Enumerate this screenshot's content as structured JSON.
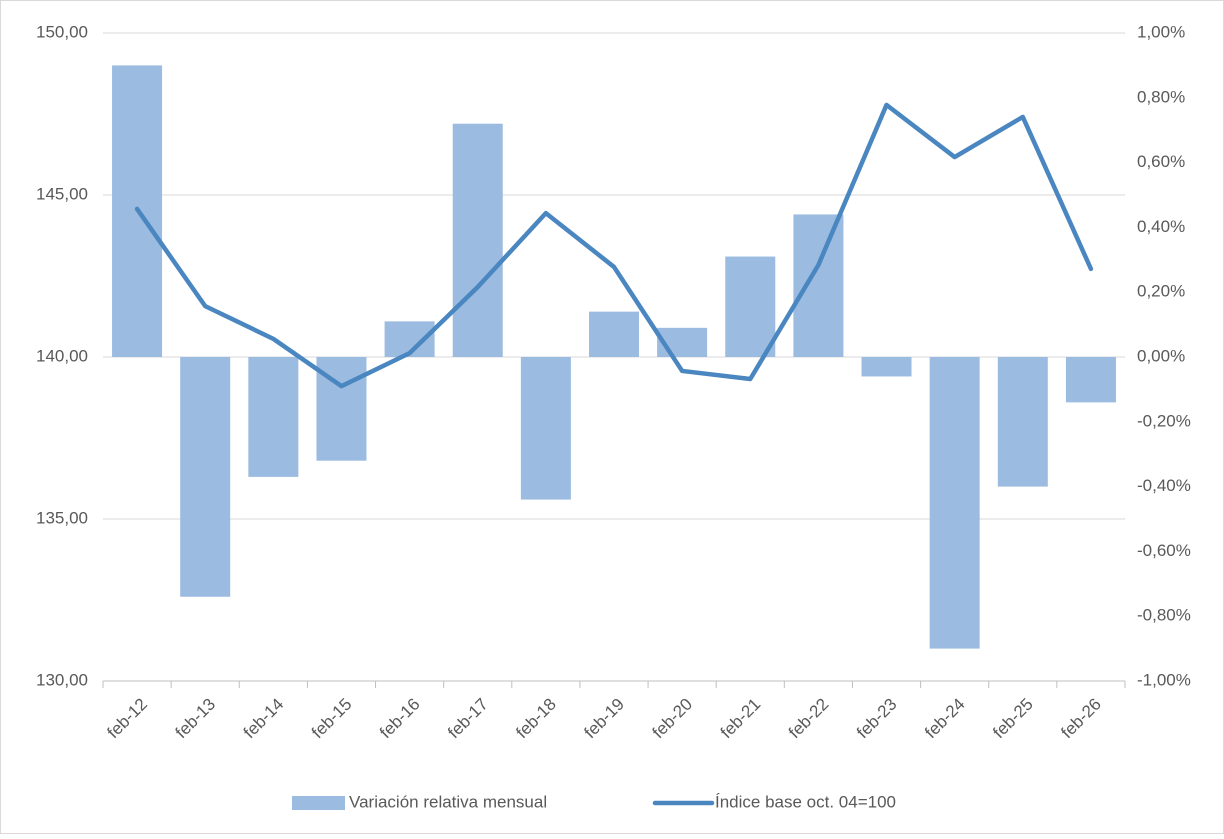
{
  "chart_data": {
    "type": "combo",
    "categories": [
      "feb-12",
      "feb-13",
      "feb-14",
      "feb-15",
      "feb-16",
      "feb-17",
      "feb-18",
      "feb-19",
      "feb-20",
      "feb-21",
      "feb-22",
      "feb-23",
      "feb-24",
      "feb-25",
      "feb-26"
    ],
    "series": [
      {
        "name": "Variación relativa mensual",
        "type": "bar",
        "axis": "y2",
        "color": "#9bbbe0",
        "values": [
          0.9,
          -0.74,
          -0.37,
          -0.32,
          0.11,
          0.72,
          -0.44,
          0.14,
          0.09,
          0.31,
          0.44,
          -0.06,
          -0.9,
          -0.4,
          -0.14
        ]
      },
      {
        "name": "Índice base oct. 04=100",
        "type": "line",
        "axis": "y",
        "color": "#4a86c0",
        "values": [
          144.57,
          141.57,
          140.56,
          139.1,
          140.12,
          142.16,
          144.44,
          142.78,
          139.57,
          139.32,
          142.84,
          147.78,
          146.17,
          147.41,
          142.72
        ]
      }
    ],
    "ylim": [
      130,
      150
    ],
    "yticks": [
      {
        "value": 130,
        "label": "130,00"
      },
      {
        "value": 135,
        "label": "135,00"
      },
      {
        "value": 140,
        "label": "140,00"
      },
      {
        "value": 145,
        "label": "145,00"
      },
      {
        "value": 150,
        "label": "150,00"
      }
    ],
    "y2lim": [
      -1,
      1
    ],
    "y2ticks": [
      {
        "value": -1,
        "label": "-1,00%"
      },
      {
        "value": -0.8,
        "label": "-0,80%"
      },
      {
        "value": -0.6,
        "label": "-0,60%"
      },
      {
        "value": -0.4,
        "label": "-0,40%"
      },
      {
        "value": -0.2,
        "label": "-0,20%"
      },
      {
        "value": 0,
        "label": "0,00%"
      },
      {
        "value": 0.2,
        "label": "0,20%"
      },
      {
        "value": 0.4,
        "label": "0,40%"
      },
      {
        "value": 0.6,
        "label": "0,60%"
      },
      {
        "value": 0.8,
        "label": "0,80%"
      },
      {
        "value": 1,
        "label": "1,00%"
      }
    ],
    "grid": true,
    "legend": "bottom"
  }
}
